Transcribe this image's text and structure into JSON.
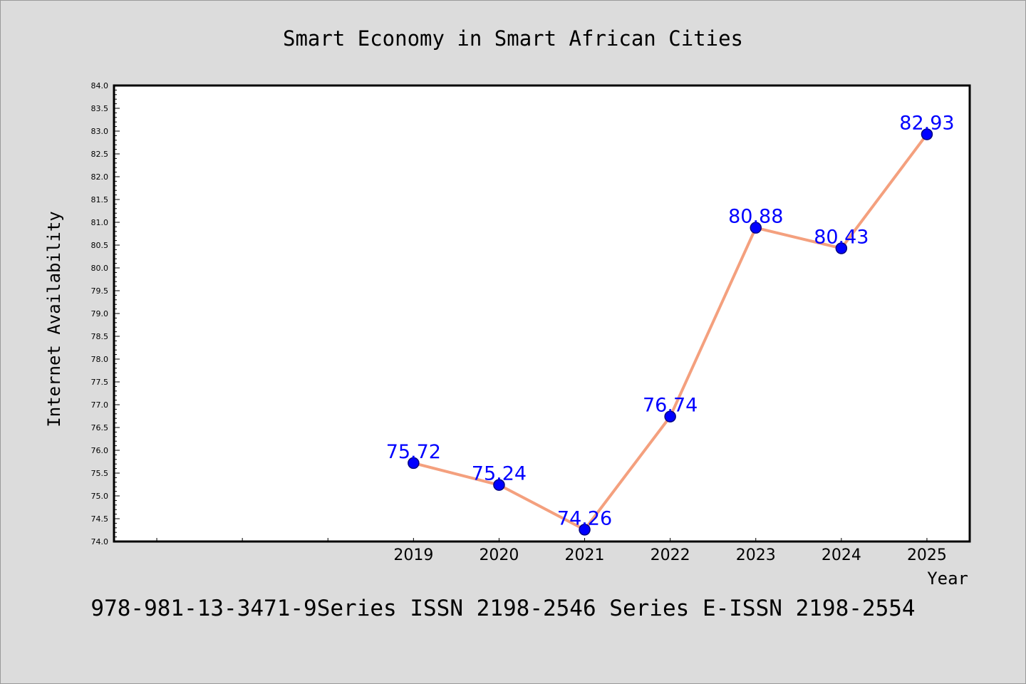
{
  "chart_data": {
    "type": "line",
    "title": "Smart Economy in Smart African Cities",
    "xlabel": "Year",
    "ylabel": "Internet Availability",
    "categories": [
      "2019",
      "2020",
      "2021",
      "2022",
      "2023",
      "2024",
      "2025"
    ],
    "x": [
      2019,
      2020,
      2021,
      2022,
      2023,
      2024,
      2025
    ],
    "values": [
      75.72,
      75.24,
      74.26,
      76.74,
      80.88,
      80.43,
      82.93
    ],
    "data_labels": [
      "75.72",
      "75.24",
      "74.26",
      "76.74",
      "80.88",
      "80.43",
      "82.93"
    ],
    "xlim": [
      2015.5,
      2025.5
    ],
    "ylim": [
      74.0,
      84.0
    ],
    "y_ticks": [
      "74.0",
      "74.5",
      "75.0",
      "75.5",
      "76.0",
      "76.5",
      "77.0",
      "77.5",
      "78.0",
      "78.5",
      "79.0",
      "79.5",
      "80.0",
      "80.5",
      "81.0",
      "81.5",
      "82.0",
      "82.5",
      "83.0",
      "83.5",
      "84.0"
    ],
    "grid": false,
    "legend": "none",
    "colors": {
      "line": "#f4a07e",
      "marker": "#0000ff",
      "marker_edge": "#000080",
      "label": "#0000ff",
      "plot_bg": "#ffffff",
      "page_bg": "#dcdcdc"
    }
  },
  "footer": {
    "text": "978-981-13-3471-9Series ISSN 2198-2546 Series E-ISSN 2198-2554"
  }
}
